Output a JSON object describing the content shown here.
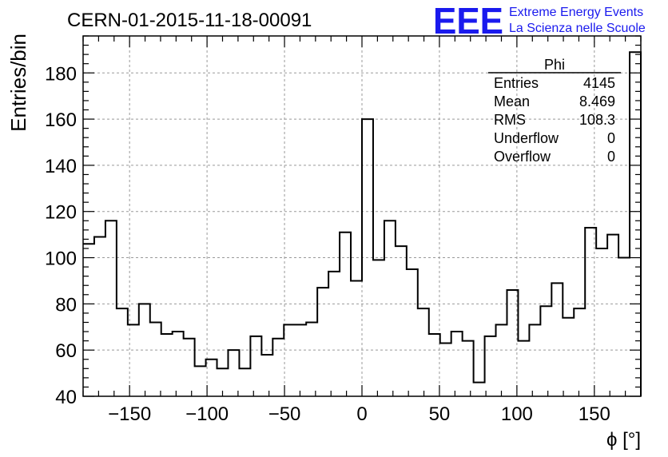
{
  "header": {
    "run_title": "CERN-01-2015-11-18-00091",
    "logo": "EEE",
    "logo_line1": "Extreme Energy Events",
    "logo_line2": "La Scienza nelle Scuole"
  },
  "stats": {
    "name": "Phi",
    "rows": [
      {
        "label": "Entries",
        "value": "4145"
      },
      {
        "label": "Mean",
        "value": "8.469"
      },
      {
        "label": "RMS",
        "value": "108.3"
      },
      {
        "label": "Underflow",
        "value": "0"
      },
      {
        "label": "Overflow",
        "value": "0"
      }
    ]
  },
  "chart_data": {
    "type": "bar",
    "style": "step-histogram",
    "title": "CERN-01-2015-11-18-00091",
    "xlabel": "ϕ [°]",
    "ylabel": "Entries/bin",
    "xlim": [
      -180,
      180
    ],
    "ylim": [
      40,
      196
    ],
    "bin_width": 7.2,
    "xticks": [
      -150,
      -100,
      -50,
      0,
      50,
      100,
      150
    ],
    "xtick_labels": [
      "−150",
      "−100",
      "−50",
      "0",
      "50",
      "100",
      "150"
    ],
    "yticks": [
      40,
      60,
      80,
      100,
      120,
      140,
      160,
      180
    ],
    "grid": true,
    "values": [
      106,
      109,
      116,
      78,
      71,
      80,
      72,
      67,
      68,
      65,
      53,
      56,
      52,
      60,
      52,
      66,
      58,
      65,
      71,
      71,
      72,
      87,
      94,
      111,
      90,
      160,
      99,
      116,
      105,
      95,
      78,
      67,
      63,
      68,
      64,
      46,
      66,
      71,
      86,
      64,
      71,
      79,
      89,
      74,
      78,
      113,
      104,
      110,
      100,
      189
    ]
  }
}
